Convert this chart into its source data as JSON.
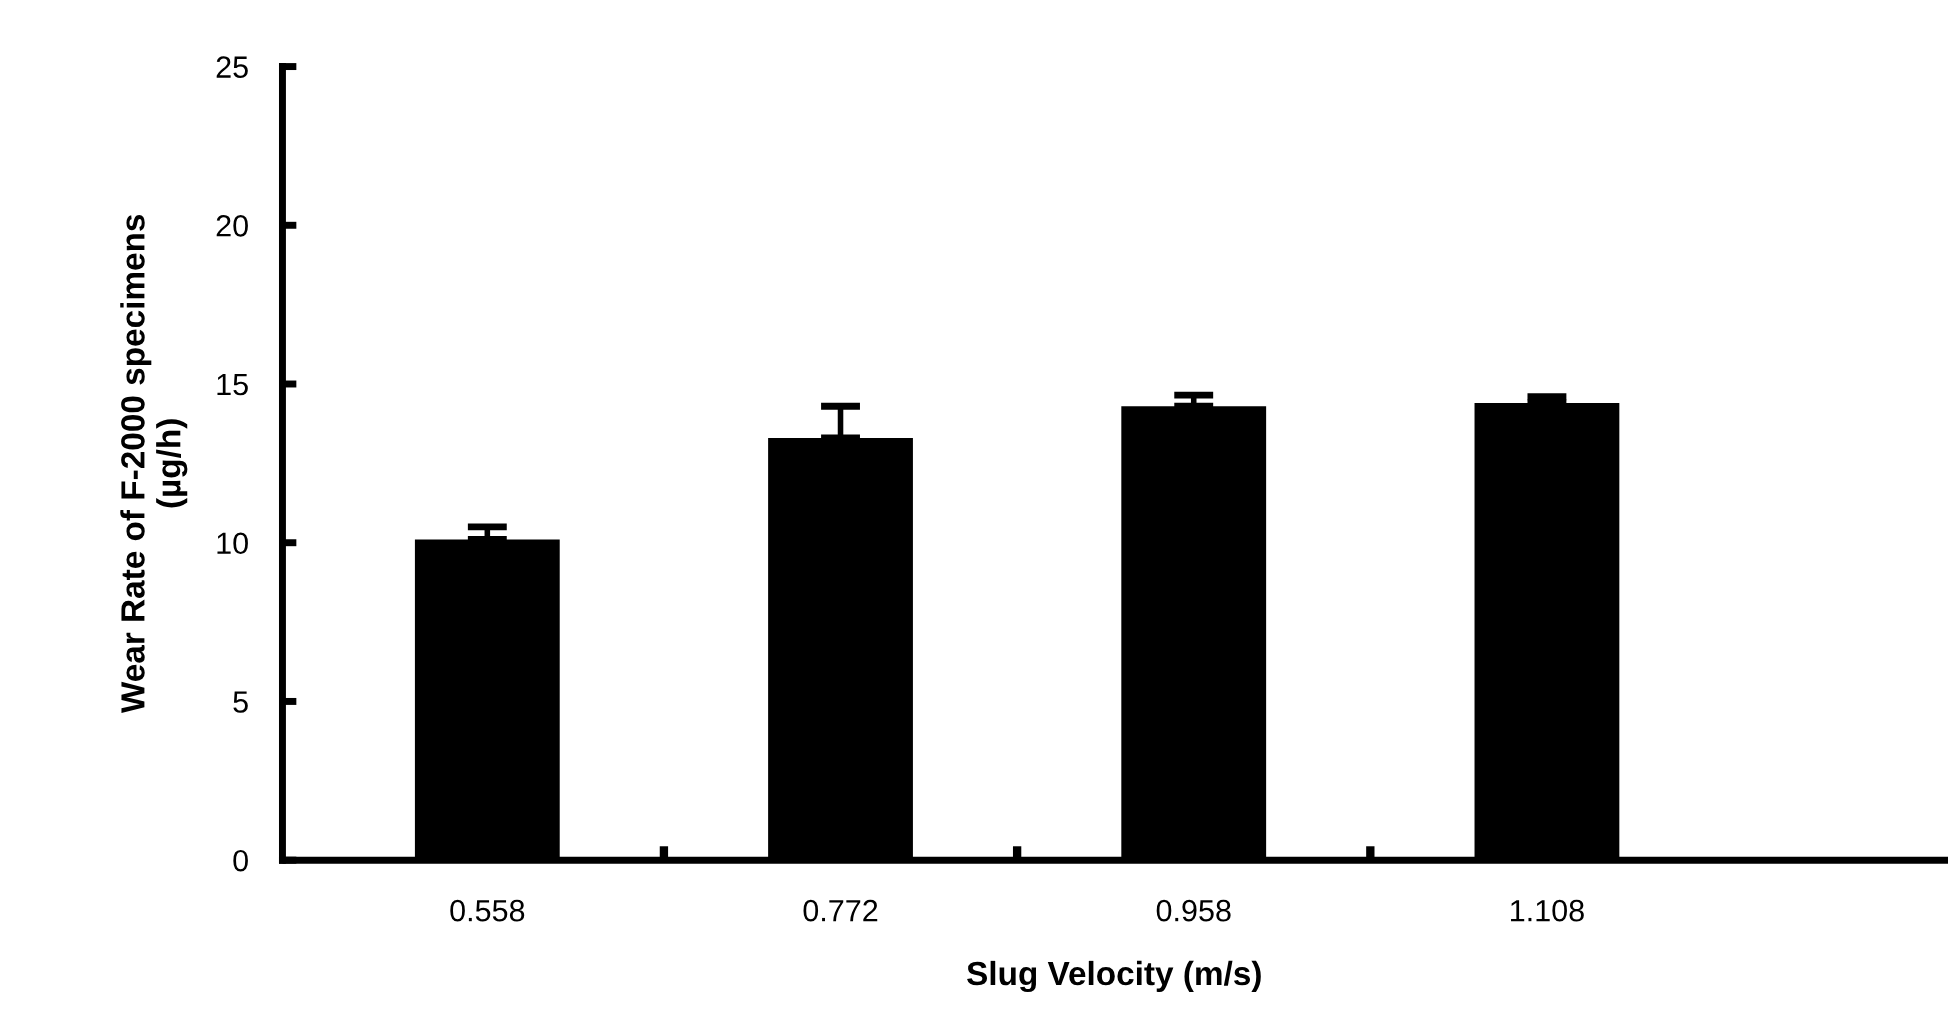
{
  "chart_data": {
    "type": "bar",
    "xlabel": "Slug Velocity (m/s)",
    "ylabel": "Wear Rate of F-2000 specimens\n(µg/h)",
    "categories": [
      "0.558",
      "0.772",
      "0.958",
      "1.108"
    ],
    "values": [
      10.1,
      13.3,
      14.3,
      14.4
    ],
    "errors": [
      [
        10.1,
        10.5
      ],
      [
        13.3,
        14.3
      ],
      [
        14.3,
        14.65
      ],
      [
        14.4,
        14.6
      ]
    ],
    "color": "#000000",
    "ylim": [
      0,
      25
    ],
    "yticks": [
      0,
      5,
      10,
      15,
      20,
      25
    ],
    "grid": false,
    "legend": false
  }
}
